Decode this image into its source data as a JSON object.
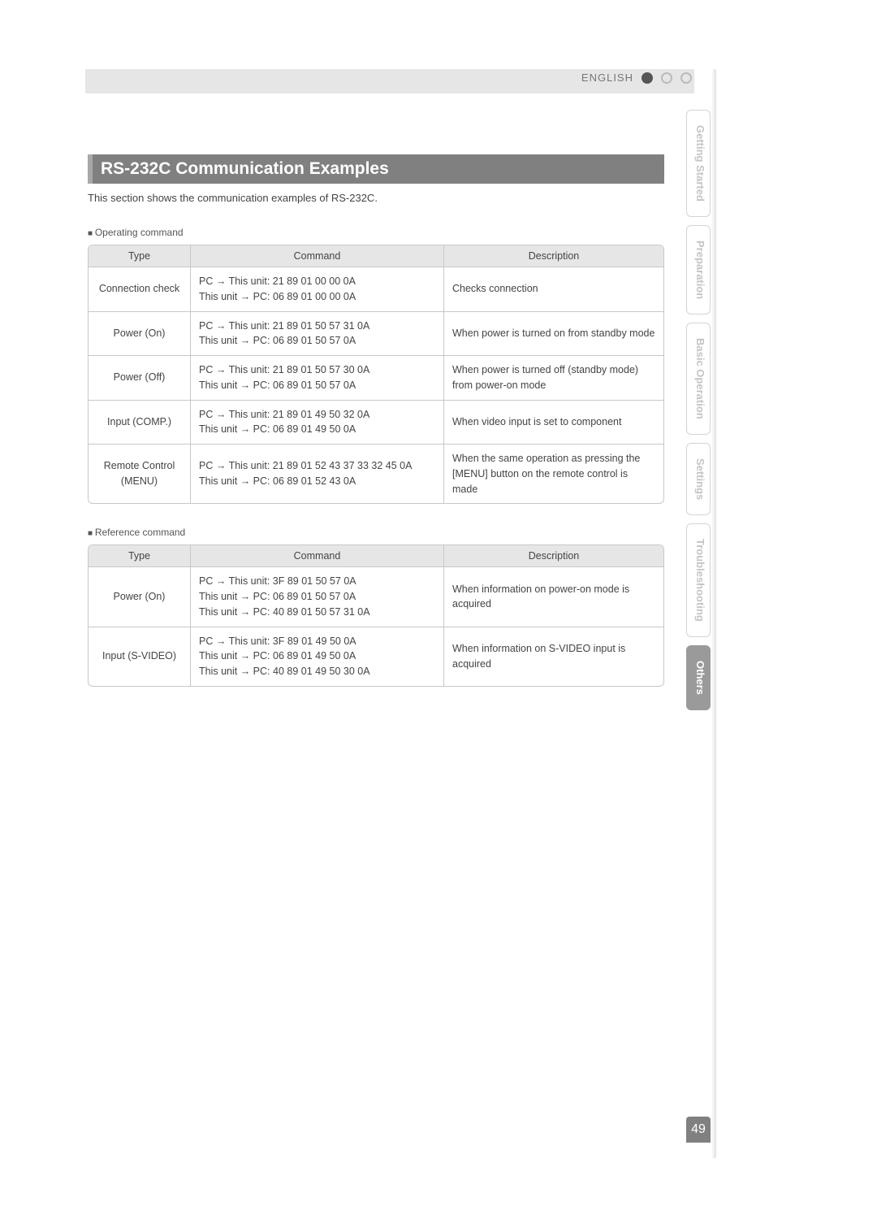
{
  "header": {
    "language_label": "ENGLISH"
  },
  "section": {
    "title": "RS-232C Communication Examples",
    "intro": "This section shows the communication examples of RS-232C."
  },
  "operating": {
    "heading": "Operating command",
    "columns": {
      "type": "Type",
      "command": "Command",
      "description": "Description"
    },
    "rows": [
      {
        "type": "Connection check",
        "cmd1": "PC → This unit: 21 89 01 00 00 0A",
        "cmd2": "This unit → PC: 06 89 01 00 00 0A",
        "desc": "Checks connection"
      },
      {
        "type": "Power (On)",
        "cmd1": "PC → This unit: 21 89 01 50 57 31 0A",
        "cmd2": "This unit → PC: 06 89 01 50 57 0A",
        "desc": "When power is turned on from standby mode"
      },
      {
        "type": "Power (Off)",
        "cmd1": "PC → This unit: 21 89 01 50 57 30 0A",
        "cmd2": "This unit → PC: 06 89 01 50 57 0A",
        "desc": "When power is turned off (standby mode) from power-on mode"
      },
      {
        "type": "Input (COMP.)",
        "cmd1": "PC → This unit: 21 89 01 49 50 32 0A",
        "cmd2": "This unit → PC: 06 89 01 49 50 0A",
        "desc": "When video input is set to component"
      },
      {
        "type": "Remote Control (MENU)",
        "cmd1": "PC → This unit: 21 89 01 52 43 37 33 32 45 0A",
        "cmd2": "This unit → PC: 06 89 01 52 43 0A",
        "desc": "When the same operation as pressing the [MENU] button on the remote control is made"
      }
    ]
  },
  "reference": {
    "heading": "Reference command",
    "columns": {
      "type": "Type",
      "command": "Command",
      "description": "Description"
    },
    "rows": [
      {
        "type": "Power (On)",
        "cmd1": "PC → This unit: 3F 89 01 50 57 0A",
        "cmd2": "This unit → PC: 06 89 01 50 57 0A",
        "cmd3": "This unit → PC: 40 89 01 50 57 31 0A",
        "desc": "When information on power-on mode is acquired"
      },
      {
        "type": "Input (S-VIDEO)",
        "cmd1": "PC → This unit: 3F 89 01 49 50 0A",
        "cmd2": "This unit → PC: 06 89 01 49 50 0A",
        "cmd3": "This unit → PC: 40 89 01 49 50 30 0A",
        "desc": "When information on S-VIDEO input is acquired"
      }
    ]
  },
  "tabs": {
    "getting_started": "Getting Started",
    "preparation": "Preparation",
    "basic_operation": "Basic Operation",
    "settings": "Settings",
    "troubleshooting": "Troubleshooting",
    "others": "Others"
  },
  "page_number": "49"
}
